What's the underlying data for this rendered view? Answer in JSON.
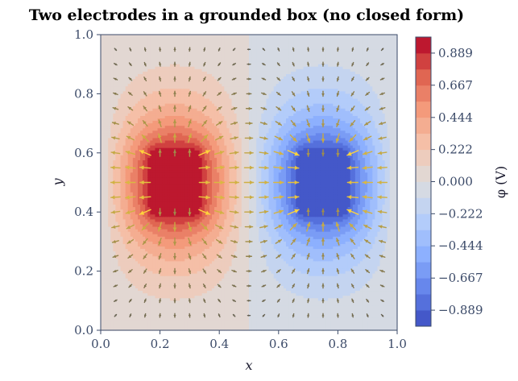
{
  "chart_data": {
    "type": "heatmap",
    "subtype": "filled-contour-with-quiver",
    "title": "Two electrodes in a grounded box (no closed form)",
    "xlabel": "x",
    "ylabel": "y",
    "xlim": [
      0.0,
      1.0
    ],
    "ylim": [
      0.0,
      1.0
    ],
    "x_ticks": [
      "0.0",
      "0.2",
      "0.4",
      "0.6",
      "0.8",
      "1.0"
    ],
    "y_ticks": [
      "0.0",
      "0.2",
      "0.4",
      "0.6",
      "0.8",
      "1.0"
    ],
    "grid": false,
    "colormap": "coolwarm",
    "levels": 18,
    "vmin": -1.0,
    "vmax": 1.0,
    "electrodes": [
      {
        "name": "positive",
        "potential": 1.0,
        "x_range": [
          0.175,
          0.325
        ],
        "y_range": [
          0.4,
          0.6
        ]
      },
      {
        "name": "negative",
        "potential": -1.0,
        "x_range": [
          0.675,
          0.825
        ],
        "y_range": [
          0.4,
          0.6
        ]
      }
    ],
    "boundary_potential": 0.0,
    "quiver": {
      "field": "E = -grad(phi)",
      "grid_spacing": 0.05,
      "low_color": "#555555",
      "high_color": "#ffd43b"
    },
    "colorbar": {
      "label": "φ (V)",
      "ticks": [
        "0.889",
        "0.667",
        "0.444",
        "0.222",
        "0.000",
        "−0.222",
        "−0.444",
        "−0.667",
        "−0.889"
      ],
      "tick_values": [
        0.889,
        0.667,
        0.444,
        0.222,
        0.0,
        -0.222,
        -0.444,
        -0.667,
        -0.889
      ]
    }
  }
}
